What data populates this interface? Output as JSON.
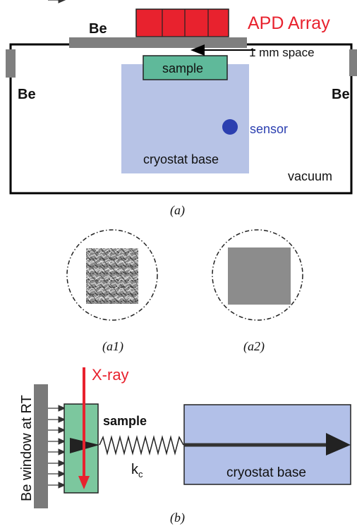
{
  "panel_a": {
    "apd_label": "APD Array",
    "be_top": "Be",
    "be_left": "Be",
    "be_right": "Be",
    "spacing_label": "1 mm space",
    "sample_label": "sample",
    "sensor_label": "sensor",
    "base_label": "cryostat base",
    "vacuum_label": "vacuum",
    "caption": "(a)",
    "colors": {
      "apd": "#e8222e",
      "be": "#7f7f7f",
      "sample": "#5fb99a",
      "base": "#b7c3e6",
      "sensor": "#2b3fb0",
      "frame": "#000000"
    }
  },
  "panel_a1": {
    "caption": "(a1)"
  },
  "panel_a2": {
    "caption": "(a2)"
  },
  "panel_b": {
    "be_window_label": "Be window at RT",
    "xray_label": "X-ray",
    "sample_label": "sample",
    "spring_label_main": "k",
    "spring_label_sub": "c",
    "base_label": "cryostat base",
    "caption": "(b)",
    "colors": {
      "xray": "#e8222e",
      "sample": "#7cc79e",
      "base": "#b2c0e8",
      "window": "#7a7a7a"
    }
  }
}
